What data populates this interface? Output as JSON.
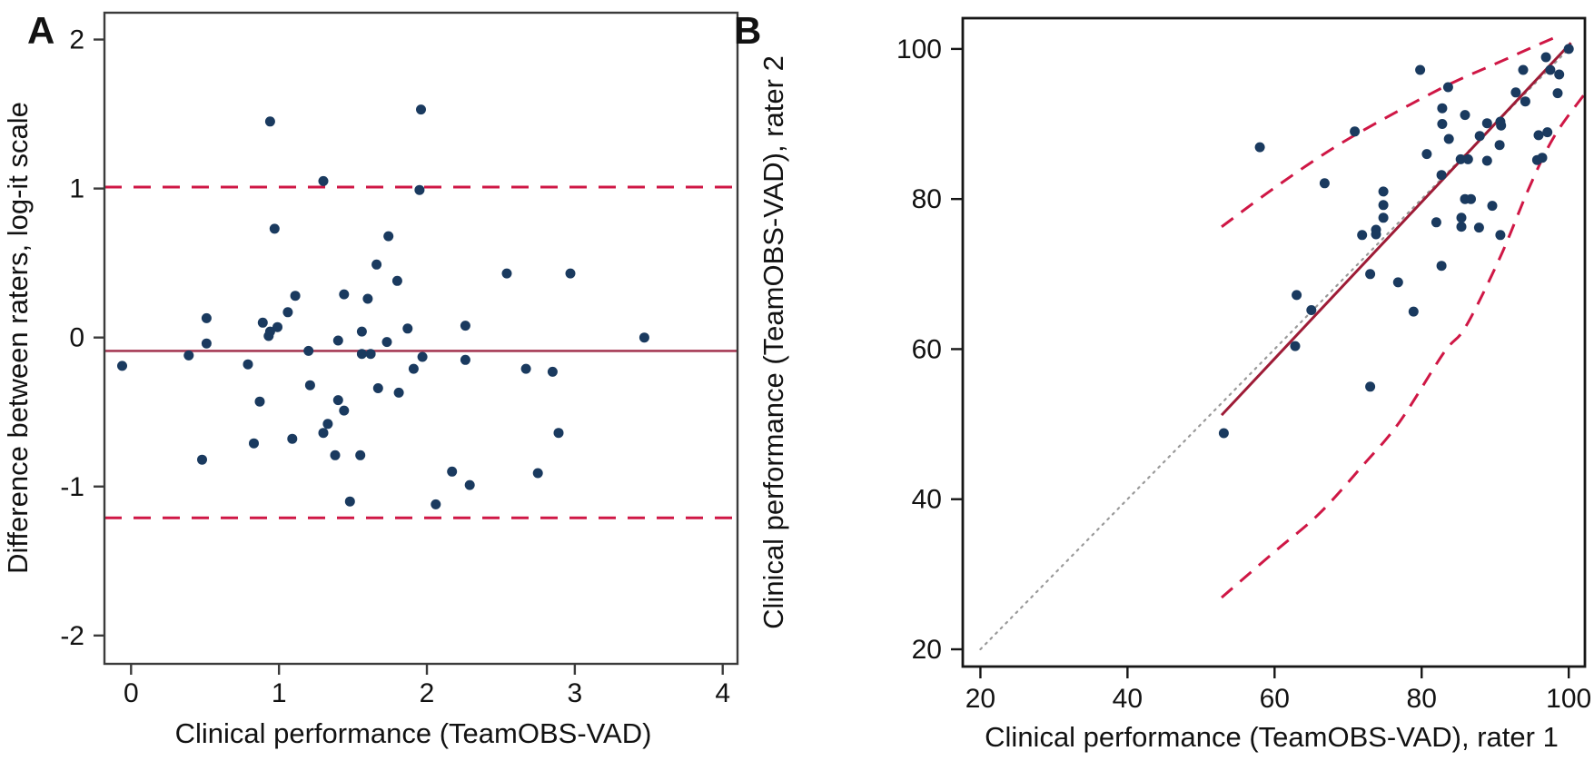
{
  "figure": {
    "panel_a_letter": "A",
    "panel_b_letter": "B"
  },
  "colors": {
    "point": "#1a3a5f",
    "dashed_crimson": "#cf1745",
    "solid_crimson_a": "#a63a55",
    "solid_crimson_b": "#9e1b36",
    "identity_gray": "#9a9a9a",
    "axis_a": "#3b3b3b",
    "axis_b": "#161616",
    "text": "#121212"
  },
  "chart_data": [
    {
      "panel": "A",
      "type": "scatter",
      "title": "",
      "xlabel": "Clinical performance (TeamOBS-VAD)",
      "ylabel": "Difference between raters, log-it scale",
      "x_ticks": [
        0,
        1,
        2,
        3,
        4
      ],
      "y_ticks": [
        2,
        1,
        0,
        -1,
        -2
      ],
      "xlim": [
        -0.18,
        4.1
      ],
      "ylim": [
        -2.19,
        2.18
      ],
      "grid": false,
      "mean_line": -0.09,
      "upper_loa": 1.01,
      "lower_loa": -1.21,
      "points": [
        [
          0.94,
          1.45
        ],
        [
          1.96,
          1.53
        ],
        [
          1.3,
          1.05
        ],
        [
          1.95,
          0.99
        ],
        [
          0.97,
          0.73
        ],
        [
          1.74,
          0.68
        ],
        [
          1.66,
          0.49
        ],
        [
          1.8,
          0.38
        ],
        [
          2.54,
          0.43
        ],
        [
          2.97,
          0.43
        ],
        [
          1.11,
          0.28
        ],
        [
          1.44,
          0.29
        ],
        [
          1.6,
          0.26
        ],
        [
          1.06,
          0.17
        ],
        [
          0.51,
          0.13
        ],
        [
          0.89,
          0.1
        ],
        [
          0.99,
          0.07
        ],
        [
          0.94,
          0.04
        ],
        [
          0.93,
          0.01
        ],
        [
          1.56,
          0.04
        ],
        [
          1.87,
          0.06
        ],
        [
          2.26,
          0.08
        ],
        [
          3.47,
          0.0
        ],
        [
          1.4,
          -0.02
        ],
        [
          -0.06,
          -0.19
        ],
        [
          0.39,
          -0.12
        ],
        [
          0.51,
          -0.04
        ],
        [
          0.79,
          -0.18
        ],
        [
          1.2,
          -0.09
        ],
        [
          1.56,
          -0.11
        ],
        [
          1.62,
          -0.11
        ],
        [
          1.73,
          -0.03
        ],
        [
          1.21,
          -0.32
        ],
        [
          0.87,
          -0.43
        ],
        [
          1.4,
          -0.42
        ],
        [
          1.44,
          -0.49
        ],
        [
          1.33,
          -0.58
        ],
        [
          1.3,
          -0.64
        ],
        [
          1.09,
          -0.68
        ],
        [
          0.83,
          -0.71
        ],
        [
          0.48,
          -0.82
        ],
        [
          1.38,
          -0.79
        ],
        [
          1.55,
          -0.79
        ],
        [
          1.48,
          -1.1
        ],
        [
          1.67,
          -0.34
        ],
        [
          1.81,
          -0.37
        ],
        [
          1.91,
          -0.21
        ],
        [
          1.97,
          -0.13
        ],
        [
          2.26,
          -0.15
        ],
        [
          2.67,
          -0.21
        ],
        [
          2.85,
          -0.23
        ],
        [
          2.89,
          -0.64
        ],
        [
          2.17,
          -0.9
        ],
        [
          2.29,
          -0.99
        ],
        [
          2.75,
          -0.91
        ],
        [
          2.06,
          -1.12
        ]
      ]
    },
    {
      "panel": "B",
      "type": "scatter",
      "title": "",
      "xlabel": "Clinical performance (TeamOBS-VAD), rater 1",
      "ylabel": "Clinical performance (TeamOBS-VAD), rater 2",
      "x_ticks": [
        20,
        40,
        60,
        80,
        100
      ],
      "y_ticks": [
        100,
        80,
        60,
        40,
        20
      ],
      "xlim": [
        17.6,
        102.2
      ],
      "ylim": [
        17.7,
        104.1
      ],
      "grid": false,
      "identity_line": {
        "from": [
          20,
          20
        ],
        "to": [
          100.6,
          100.6
        ]
      },
      "regression_line": {
        "from": [
          52.8,
          51.2
        ],
        "to": [
          100.3,
          100.8
        ]
      },
      "upper_band": [
        [
          52.8,
          76.3
        ],
        [
          60,
          81.5
        ],
        [
          68,
          86.8
        ],
        [
          76,
          91.3
        ],
        [
          84,
          95.4
        ],
        [
          90,
          98.0
        ],
        [
          95,
          100.2
        ],
        [
          99,
          101.9
        ]
      ],
      "lower_band": [
        [
          52.8,
          26.9
        ],
        [
          60,
          33.0
        ],
        [
          66,
          38.0
        ],
        [
          72,
          44.5
        ],
        [
          77,
          50.3
        ],
        [
          83,
          59.5
        ],
        [
          86,
          63.0
        ],
        [
          90.7,
          72.3
        ],
        [
          94.7,
          81.7
        ],
        [
          98,
          88.3
        ],
        [
          102,
          93.8
        ]
      ],
      "points": [
        [
          100,
          100
        ],
        [
          96.9,
          98.9
        ],
        [
          97.5,
          97.2
        ],
        [
          98.7,
          96.6
        ],
        [
          93.8,
          97.2
        ],
        [
          79.8,
          97.2
        ],
        [
          83.6,
          94.9
        ],
        [
          92.8,
          94.2
        ],
        [
          98.5,
          94.1
        ],
        [
          94.1,
          93.0
        ],
        [
          82.8,
          92.1
        ],
        [
          85.9,
          91.2
        ],
        [
          82.8,
          90.0
        ],
        [
          88.9,
          90.1
        ],
        [
          90.7,
          90.3
        ],
        [
          90.8,
          89.8
        ],
        [
          95.9,
          88.5
        ],
        [
          97.1,
          88.9
        ],
        [
          87.9,
          88.4
        ],
        [
          83.7,
          88.0
        ],
        [
          90.6,
          87.2
        ],
        [
          58.0,
          86.9
        ],
        [
          70.9,
          89.0
        ],
        [
          80.7,
          86.0
        ],
        [
          85.3,
          85.3
        ],
        [
          86.3,
          85.3
        ],
        [
          88.9,
          85.1
        ],
        [
          95.7,
          85.2
        ],
        [
          96.4,
          85.5
        ],
        [
          82.7,
          83.2
        ],
        [
          66.8,
          82.1
        ],
        [
          74.8,
          81.0
        ],
        [
          74.8,
          79.2
        ],
        [
          85.9,
          80.0
        ],
        [
          86.7,
          80.0
        ],
        [
          89.6,
          79.1
        ],
        [
          82.0,
          76.9
        ],
        [
          85.4,
          77.5
        ],
        [
          85.4,
          76.3
        ],
        [
          87.8,
          76.2
        ],
        [
          74.8,
          77.5
        ],
        [
          73.8,
          75.9
        ],
        [
          73.8,
          75.3
        ],
        [
          71.9,
          75.2
        ],
        [
          90.7,
          75.2
        ],
        [
          73.0,
          70.0
        ],
        [
          82.7,
          71.1
        ],
        [
          76.8,
          68.9
        ],
        [
          63.0,
          67.2
        ],
        [
          65.0,
          65.2
        ],
        [
          78.9,
          65.0
        ],
        [
          62.8,
          60.4
        ],
        [
          73.0,
          55.0
        ],
        [
          53.1,
          48.8
        ]
      ]
    }
  ]
}
